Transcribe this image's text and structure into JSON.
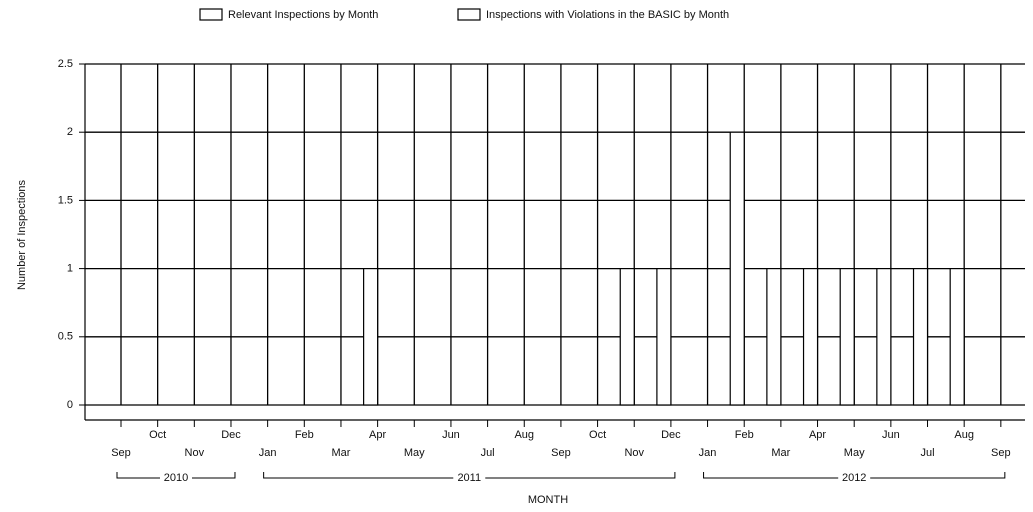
{
  "chart_data": {
    "type": "bar",
    "x_label": "MONTH",
    "y_label": "Number of Inspections",
    "categories": [
      "Sep",
      "Oct",
      "Nov",
      "Dec",
      "Jan",
      "Feb",
      "Mar",
      "Apr",
      "May",
      "Jun",
      "Jul",
      "Aug",
      "Sep",
      "Oct",
      "Nov",
      "Dec",
      "Jan",
      "Feb",
      "Mar",
      "Apr",
      "May",
      "Jun",
      "Jul",
      "Aug",
      "Sep"
    ],
    "year_groups": [
      {
        "label": "2010",
        "start": 0,
        "end": 3
      },
      {
        "label": "2011",
        "start": 4,
        "end": 15
      },
      {
        "label": "2012",
        "start": 16,
        "end": 24
      }
    ],
    "series": [
      {
        "name": "Relevant Inspections by Month",
        "color": "#ffffff",
        "values": [
          0,
          0,
          0,
          0,
          0,
          0,
          0,
          1,
          0,
          0,
          0,
          0,
          0,
          0,
          1,
          1,
          0,
          2,
          1,
          1,
          1,
          1,
          1,
          1,
          0
        ]
      },
      {
        "name": "Inspections with Violations in the BASIC by Month",
        "color": "#ffffff",
        "values": [
          0,
          0,
          0,
          0,
          0,
          0,
          0,
          0,
          0,
          0,
          0,
          0,
          0,
          0,
          0,
          0,
          0,
          0,
          0,
          0,
          0,
          0,
          0,
          0,
          0
        ]
      }
    ],
    "ylim": [
      0,
      2.5
    ],
    "yticks": [
      0,
      0.5,
      1,
      1.5,
      2,
      2.5
    ],
    "grid": true
  }
}
